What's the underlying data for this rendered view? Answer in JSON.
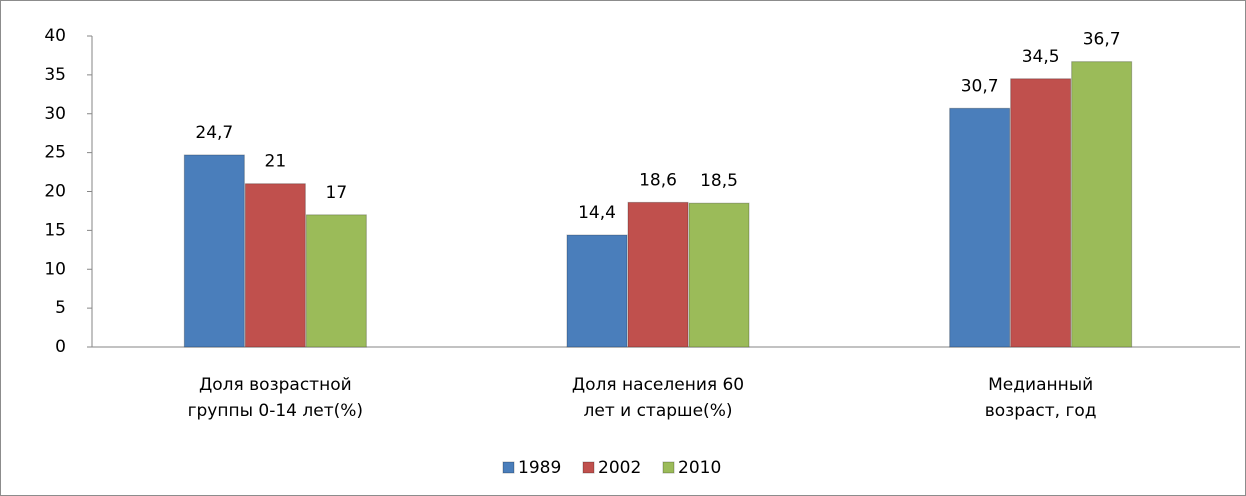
{
  "chart_data": {
    "type": "bar",
    "categories": [
      "Доля возрастной группы 0-14 лет(%)",
      "Доля населения 60 лет и старше(%)",
      "Медианный возраст, год"
    ],
    "series": [
      {
        "name": "1989",
        "color": "#4a7ebb",
        "values": [
          24.7,
          14.4,
          30.7
        ],
        "value_labels": [
          "24,7",
          "14,4",
          "30,7"
        ]
      },
      {
        "name": "2002",
        "color": "#c0504d",
        "values": [
          21,
          18.6,
          34.5
        ],
        "value_labels": [
          "21",
          "18,6",
          "34,5"
        ]
      },
      {
        "name": "2010",
        "color": "#9bbb59",
        "values": [
          17,
          18.5,
          36.7
        ],
        "value_labels": [
          "17",
          "18,5",
          "36,7"
        ]
      }
    ],
    "ylim": [
      0,
      40
    ],
    "yticks": [
      0,
      5,
      10,
      15,
      20,
      25,
      30,
      35,
      40
    ],
    "grid": false,
    "legend": "bottom"
  }
}
